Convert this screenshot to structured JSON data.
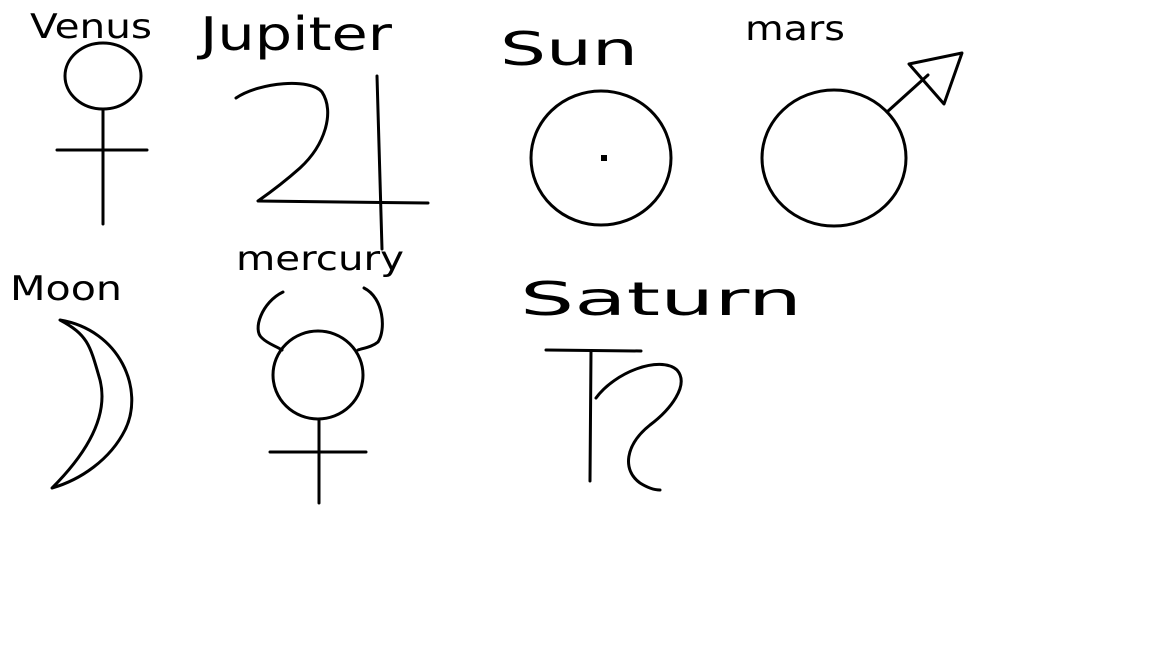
{
  "symbols": [
    {
      "id": "venus",
      "label": "Venus",
      "icon": "venus-symbol"
    },
    {
      "id": "jupiter",
      "label": "Jupiter",
      "icon": "jupiter-symbol"
    },
    {
      "id": "sun",
      "label": "Sun",
      "icon": "sun-symbol"
    },
    {
      "id": "mars",
      "label": "mars",
      "icon": "mars-symbol"
    },
    {
      "id": "moon",
      "label": "Moon",
      "icon": "moon-symbol"
    },
    {
      "id": "mercury",
      "label": "mercury",
      "icon": "mercury-symbol"
    },
    {
      "id": "saturn",
      "label": "Saturn",
      "icon": "saturn-symbol"
    }
  ],
  "colors": {
    "background": "#ffffff",
    "ink": "#000000"
  }
}
